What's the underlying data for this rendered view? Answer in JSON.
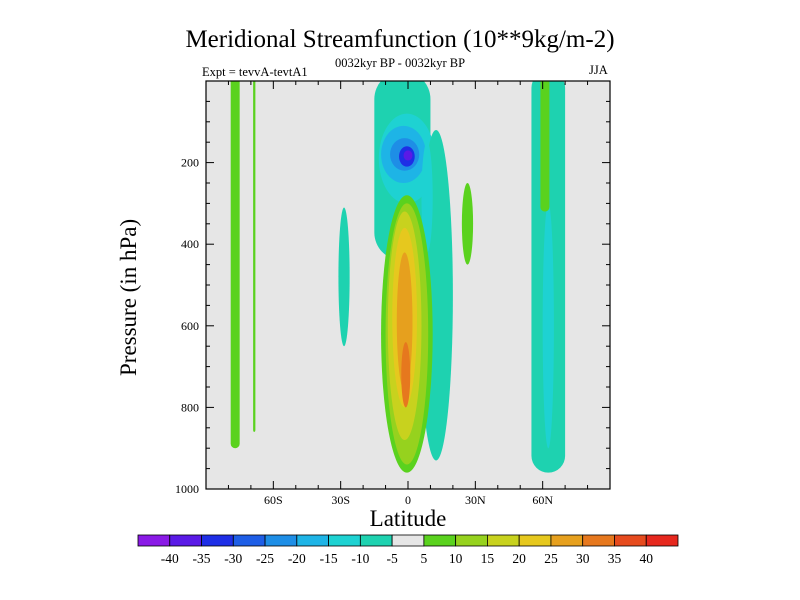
{
  "chart_data": {
    "type": "heatmap",
    "title": "Meridional Streamfunction (10**9kg/m-2)",
    "subtitle": "0032kyr BP - 0032kyr BP",
    "expt_label": "Expt = tevvA-tevtA1",
    "season": "JJA",
    "xlabel": "Latitude",
    "ylabel": "Pressure (in hPa)",
    "x_ticks": [
      {
        "value": -60,
        "label": "60S"
      },
      {
        "value": -30,
        "label": "30S"
      },
      {
        "value": 0,
        "label": "0"
      },
      {
        "value": 30,
        "label": "30N"
      },
      {
        "value": 60,
        "label": "60N"
      }
    ],
    "y_ticks": [
      {
        "value": 200,
        "label": "200"
      },
      {
        "value": 400,
        "label": "400"
      },
      {
        "value": 600,
        "label": "600"
      },
      {
        "value": 800,
        "label": "800"
      },
      {
        "value": 1000,
        "label": "1000"
      }
    ],
    "xlim": [
      -90,
      90
    ],
    "ylim": [
      1000,
      0
    ],
    "levels": [
      -40,
      -35,
      -30,
      -25,
      -20,
      -15,
      -10,
      -5,
      5,
      10,
      15,
      20,
      25,
      30,
      35,
      40
    ],
    "colors": [
      "#8a1ae6",
      "#5a1ae6",
      "#1e2ee6",
      "#1e5ee6",
      "#1e8ee6",
      "#1eb4e6",
      "#1ed2d2",
      "#1ed2b0",
      "#e6e6e6",
      "#5ad21e",
      "#96d21e",
      "#c8d21e",
      "#e6c81e",
      "#e6a01e",
      "#e6781e",
      "#e64b1e",
      "#e6281e"
    ],
    "background_color": "#e6e6e6",
    "regions": [
      {
        "level": 5,
        "lat_range": [
          -79,
          -75
        ],
        "p_range": [
          0,
          900
        ]
      },
      {
        "level": 5,
        "lat_range": [
          -69,
          -68
        ],
        "p_range": [
          0,
          860
        ]
      },
      {
        "level": -5,
        "lat_range": [
          -31,
          -26
        ],
        "p_range": [
          310,
          650
        ]
      },
      {
        "level": -5,
        "lat_range": [
          -15,
          10
        ],
        "p_range": [
          0,
          440
        ]
      },
      {
        "level": -10,
        "lat_range": [
          -13,
          12
        ],
        "p_range": [
          80,
          300
        ]
      },
      {
        "level": -15,
        "lat_range": [
          -12,
          8
        ],
        "p_range": [
          110,
          250
        ]
      },
      {
        "level": -20,
        "lat_range": [
          -8,
          5
        ],
        "p_range": [
          140,
          220
        ]
      },
      {
        "level": -30,
        "lat_range": [
          -4,
          3
        ],
        "p_range": [
          160,
          210
        ]
      },
      {
        "level": -35,
        "lat_range": [
          -2,
          2
        ],
        "p_range": [
          170,
          195
        ]
      },
      {
        "level": -5,
        "lat_range": [
          5,
          20
        ],
        "p_range": [
          120,
          930
        ]
      },
      {
        "level": -10,
        "lat_range": [
          6,
          11
        ],
        "p_range": [
          150,
          420
        ]
      },
      {
        "level": 5,
        "lat_range": [
          24,
          29
        ],
        "p_range": [
          250,
          450
        ]
      },
      {
        "level": 5,
        "lat_range": [
          -12,
          11
        ],
        "p_range": [
          280,
          960
        ]
      },
      {
        "level": 10,
        "lat_range": [
          -10,
          9
        ],
        "p_range": [
          300,
          940
        ]
      },
      {
        "level": 15,
        "lat_range": [
          -9,
          6
        ],
        "p_range": [
          320,
          880
        ]
      },
      {
        "level": 20,
        "lat_range": [
          -7,
          4
        ],
        "p_range": [
          360,
          800
        ]
      },
      {
        "level": 25,
        "lat_range": [
          -5,
          2
        ],
        "p_range": [
          420,
          760
        ]
      },
      {
        "level": 30,
        "lat_range": [
          -3,
          1
        ],
        "p_range": [
          640,
          800
        ]
      },
      {
        "level": -5,
        "lat_range": [
          55,
          70
        ],
        "p_range": [
          0,
          960
        ]
      },
      {
        "level": -10,
        "lat_range": [
          60,
          65
        ],
        "p_range": [
          300,
          900
        ]
      },
      {
        "level": 5,
        "lat_range": [
          59,
          63
        ],
        "p_range": [
          0,
          320
        ]
      }
    ]
  }
}
